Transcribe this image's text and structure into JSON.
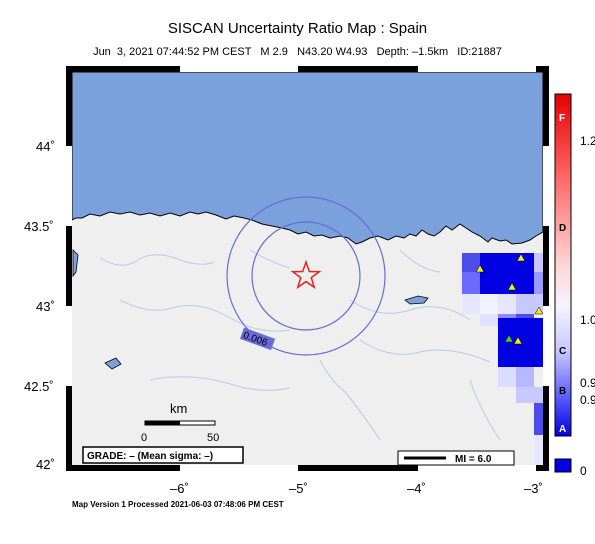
{
  "header": {
    "title": "SISCAN Uncertainty Ratio Map : Spain",
    "subtitle": "Jun  3, 2021 07:44:52 PM CEST   M 2.9   N43.20 W4.93   Depth: –1.5km   ID:21887"
  },
  "map": {
    "lat_ticks": [
      "44˚",
      "43.5˚",
      "43˚",
      "42.5˚",
      "42˚"
    ],
    "lon_ticks": [
      "–6˚",
      "–5˚",
      "–4˚",
      "–3˚"
    ],
    "contour_label": "0.006",
    "epicenter_icon": "star-icon",
    "station_icon": "triangle-icon",
    "colors": {
      "ocean": "#7aa1dc",
      "land": "#efefef",
      "contour": "#6a6ad8",
      "epicenter": "#e8201e",
      "station": "#f2ea1a",
      "station_green": "#3fcf3f"
    }
  },
  "scale_bar": {
    "unit": "km",
    "tick_start": "0",
    "tick_end": "50"
  },
  "grade_box": {
    "text": "GRADE: – (Mean sigma: –)"
  },
  "mi_legend": {
    "text": "MI = 6.0"
  },
  "colorbar": {
    "grades": [
      "F",
      "D",
      "C",
      "B",
      "A"
    ],
    "values": [
      "1.2",
      "1.0",
      "0.9",
      "0.9",
      "0"
    ]
  },
  "footer": {
    "text": "Map Version 1 Processed 2021-06-03 07:48:06 PM CEST"
  }
}
